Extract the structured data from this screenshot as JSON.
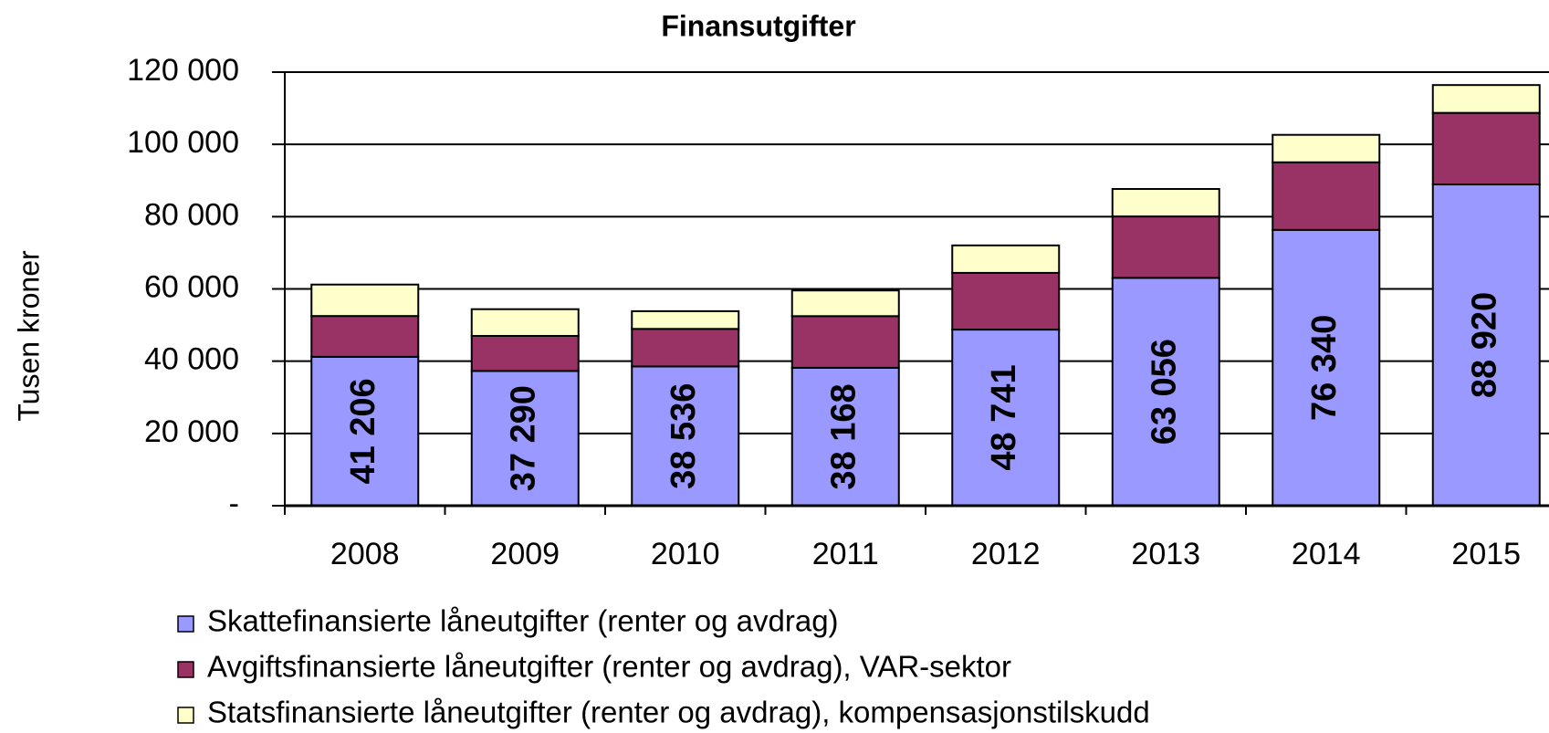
{
  "chart_data": {
    "type": "stacked_bar",
    "title": "Finansutgifter",
    "y_label": "Tusen kroner",
    "categories": [
      "2008",
      "2009",
      "2010",
      "2011",
      "2012",
      "2013",
      "2014",
      "2015"
    ],
    "series": [
      {
        "name": "Skattefinansierte låneutgifter (renter og avdrag)",
        "color": "#9999ff",
        "values": [
          41206,
          37290,
          38536,
          38168,
          48741,
          63056,
          76340,
          88920
        ],
        "value_labels": [
          "41 206",
          "37 290",
          "38 536",
          "38 168",
          "48 741",
          "63 056",
          "76 340",
          "88 920"
        ]
      },
      {
        "name": "Avgiftsfinansierte låneutgifter (renter og avdrag), VAR-sektor",
        "color": "#993366",
        "values": [
          11300,
          9700,
          10400,
          14300,
          15700,
          17000,
          18700,
          19800
        ]
      },
      {
        "name": "Statsfinansierte låneutgifter (renter og avdrag), kompensasjonstilskudd",
        "color": "#ffffcc",
        "values": [
          8700,
          7400,
          4900,
          7100,
          7600,
          7600,
          7600,
          7700
        ]
      }
    ],
    "ylim": [
      0,
      120000
    ],
    "yticks": [
      {
        "value": 0,
        "label": "-"
      },
      {
        "value": 20000,
        "label": "20 000"
      },
      {
        "value": 40000,
        "label": "40 000"
      },
      {
        "value": 60000,
        "label": "60 000"
      },
      {
        "value": 80000,
        "label": "80 000"
      },
      {
        "value": 100000,
        "label": "100 000"
      },
      {
        "value": 120000,
        "label": "120 000"
      }
    ],
    "grid": true
  }
}
